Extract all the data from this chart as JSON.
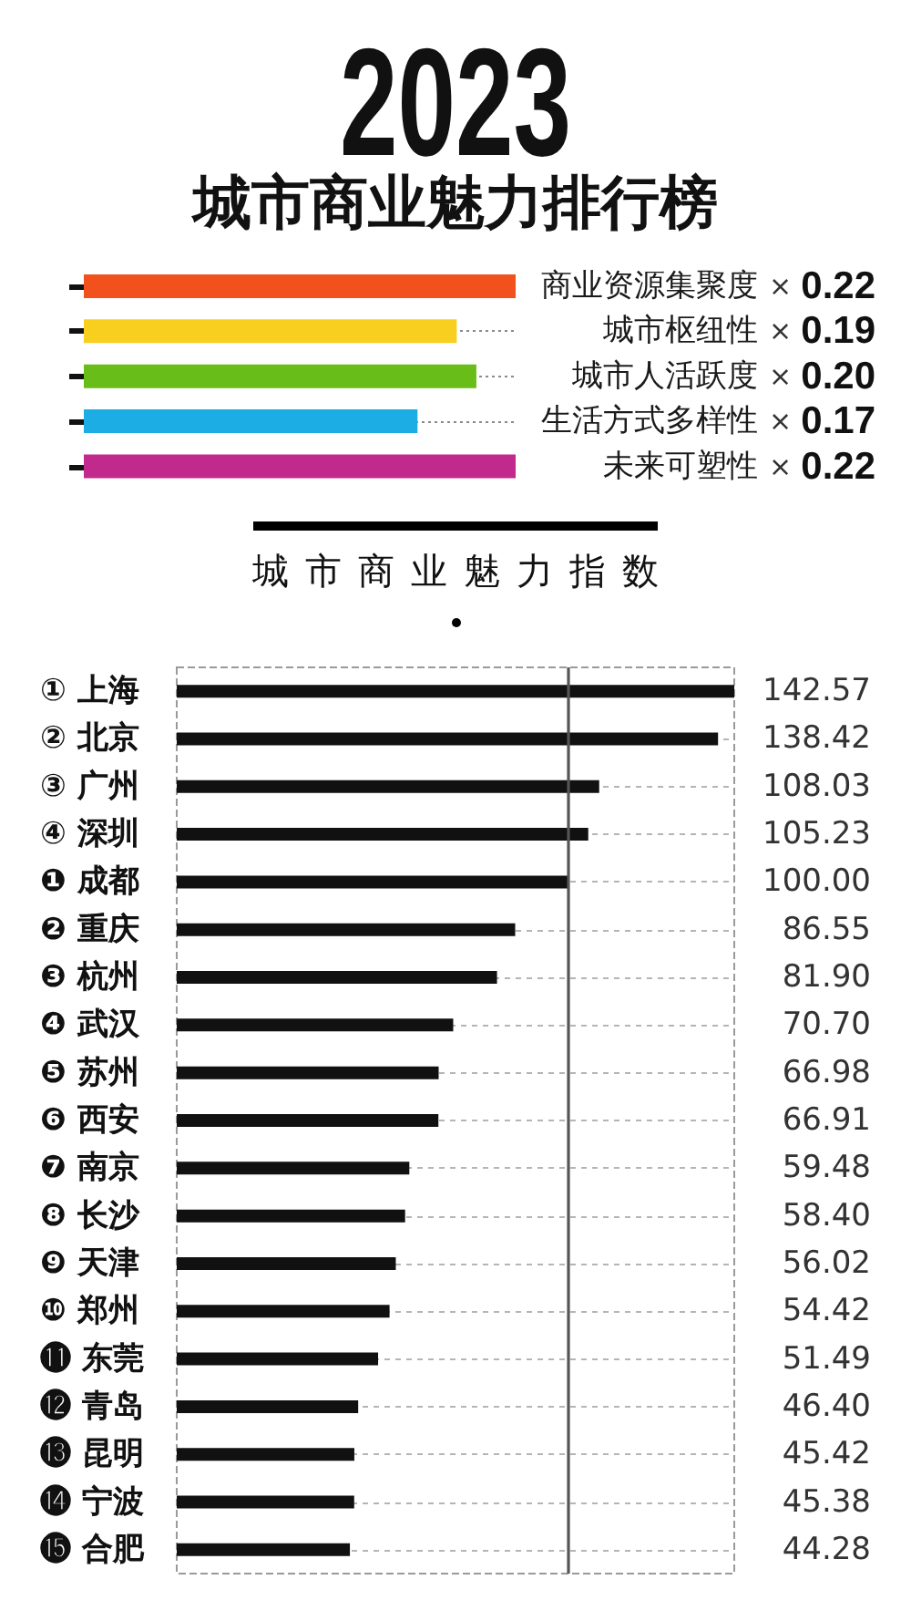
{
  "chart_data": [
    {
      "type": "bar",
      "orientation": "horizontal",
      "title": "2023",
      "subtitle": "城市商业魅力排行榜",
      "categories": [
        "商业资源集聚度",
        "城市枢纽性",
        "城市人活跃度",
        "生活方式多样性",
        "未来可塑性"
      ],
      "values": [
        0.22,
        0.19,
        0.2,
        0.17,
        0.22
      ],
      "colors": [
        "#f2501c",
        "#f8ce1f",
        "#68bd18",
        "#1cade5",
        "#c1298c"
      ],
      "value_labels": [
        "× 0.22",
        "× 0.19",
        "× 0.20",
        "× 0.17",
        "× 0.22"
      ],
      "grid": "y",
      "tick_labels": "y"
    },
    {
      "type": "bar",
      "orientation": "horizontal",
      "title": "城市商业魅力指数",
      "categories": [
        "① 上海",
        "② 北京",
        "③ 广州",
        "④ 深圳",
        "❶ 成都",
        "❷ 重庆",
        "❸ 杭州",
        "❹ 武汉",
        "❺ 苏州",
        "❻ 西安",
        "❼ 南京",
        "❽ 长沙",
        "❾ 天津",
        "❿ 郑州",
        "⓫ 东莞",
        "⓬ 青岛",
        "⓭ 昆明",
        "⓮ 宁波",
        "⓯ 合肥"
      ],
      "values": [
        142.57,
        138.42,
        108.03,
        105.23,
        100.0,
        86.55,
        81.9,
        70.7,
        66.98,
        66.91,
        59.48,
        58.4,
        56.02,
        54.42,
        51.49,
        46.4,
        45.42,
        45.38,
        44.28
      ],
      "color": "#111111",
      "value_labels": [
        "142.57",
        "138.42",
        "108.03",
        "105.23",
        "100.00",
        "86.55",
        "81.90",
        "70.70",
        "66.98",
        "66.91",
        "59.48",
        "58.40",
        "56.02",
        "54.42",
        "51.49",
        "46.40",
        "45.42",
        "45.38",
        "44.28"
      ],
      "ref_lines": [
        {
          "axis": "x",
          "value": 100,
          "color": "#555555"
        }
      ],
      "grid": "y",
      "tick_labels": "y"
    }
  ]
}
